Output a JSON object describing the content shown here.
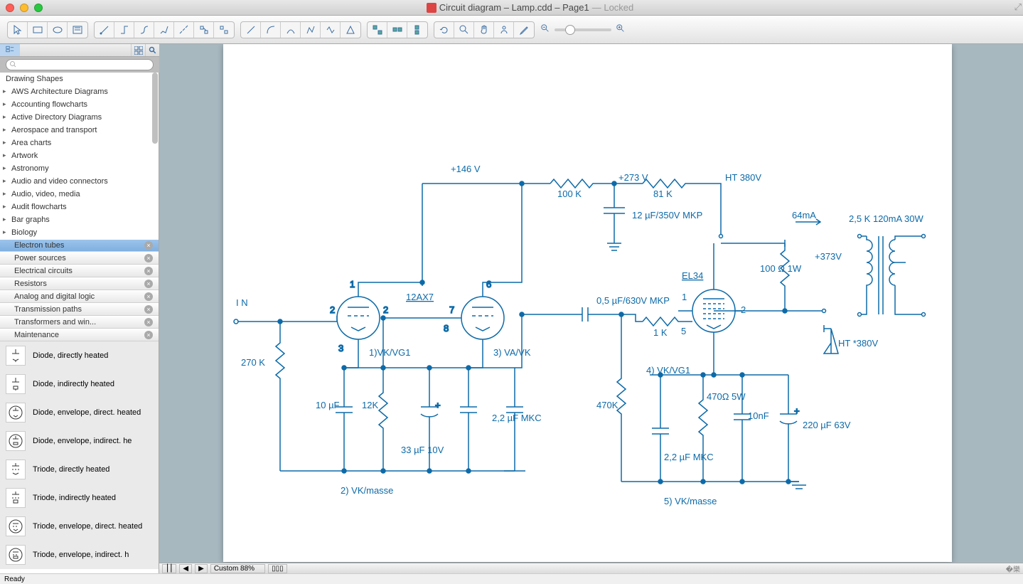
{
  "window": {
    "title_main": "Circuit diagram – Lamp.cdd – Page1",
    "title_suffix": "— Locked"
  },
  "sidebar": {
    "heading": "Drawing Shapes",
    "categories": [
      "AWS Architecture Diagrams",
      "Accounting flowcharts",
      "Active Directory Diagrams",
      "Aerospace and transport",
      "Area charts",
      "Artwork",
      "Astronomy",
      "Audio and video connectors",
      "Audio, video, media",
      "Audit flowcharts",
      "Bar graphs",
      "Biology"
    ],
    "filters": [
      {
        "label": "Electron tubes",
        "selected": true
      },
      {
        "label": "Power sources",
        "selected": false
      },
      {
        "label": "Electrical circuits",
        "selected": false
      },
      {
        "label": "Resistors",
        "selected": false
      },
      {
        "label": "Analog and digital logic",
        "selected": false
      },
      {
        "label": "Transmission paths",
        "selected": false
      },
      {
        "label": "Transformers and win...",
        "selected": false
      },
      {
        "label": "Maintenance",
        "selected": false
      }
    ],
    "shapes": [
      "Diode, directly heated",
      "Diode, indirectly heated",
      "Diode, envelope, direct. heated",
      "Diode, envelope, indirect. he",
      "Triode, directly heated",
      "Triode, indirectly heated",
      "Triode, envelope, direct. heated",
      "Triode, envelope, indirect. h"
    ]
  },
  "bottom": {
    "zoom": "Custom 88%"
  },
  "status": {
    "text": "Ready"
  },
  "circuit": {
    "stroke": "#0d6aa8",
    "stroke_width": 1.5,
    "labels": {
      "v146": "+146 V",
      "v273": "+273 V",
      "ht380": "HT 380V",
      "r100k": "100 K",
      "r81k": "81 K",
      "c12uf": "12 µF/350V MKP",
      "i64": "64mA",
      "t_spec": "2,5 K 120mA 30W",
      "v373": "+373V",
      "r100o": "100 Ω 1W",
      "el34": "EL34",
      "ax7": "12AX7",
      "c05": "0,5 µF/630V MKP",
      "r1k": "1 K",
      "ht380s": "HT *380V",
      "in": "I N",
      "r270k": "270 K",
      "c10uf": "10 µF",
      "r12k": "12K",
      "c33": "33 µF 10V",
      "c22": "2,2 µF MKC",
      "r470k": "470K",
      "r470o": "470Ω 5W",
      "c10nf": "10nF",
      "c220": "220 µF 63V",
      "c22b": "2,2 µF MKC",
      "vk1": "1)VK/VG1",
      "vk3": "3) VA/VK",
      "vk4": "4) VK/VG1",
      "vk2m": "2) VK/masse",
      "vk5m": "5) VK/masse",
      "p1": "1",
      "p2": "2",
      "p3": "3",
      "p5": "5",
      "p6": "6",
      "p7": "7",
      "p8": "8"
    }
  }
}
